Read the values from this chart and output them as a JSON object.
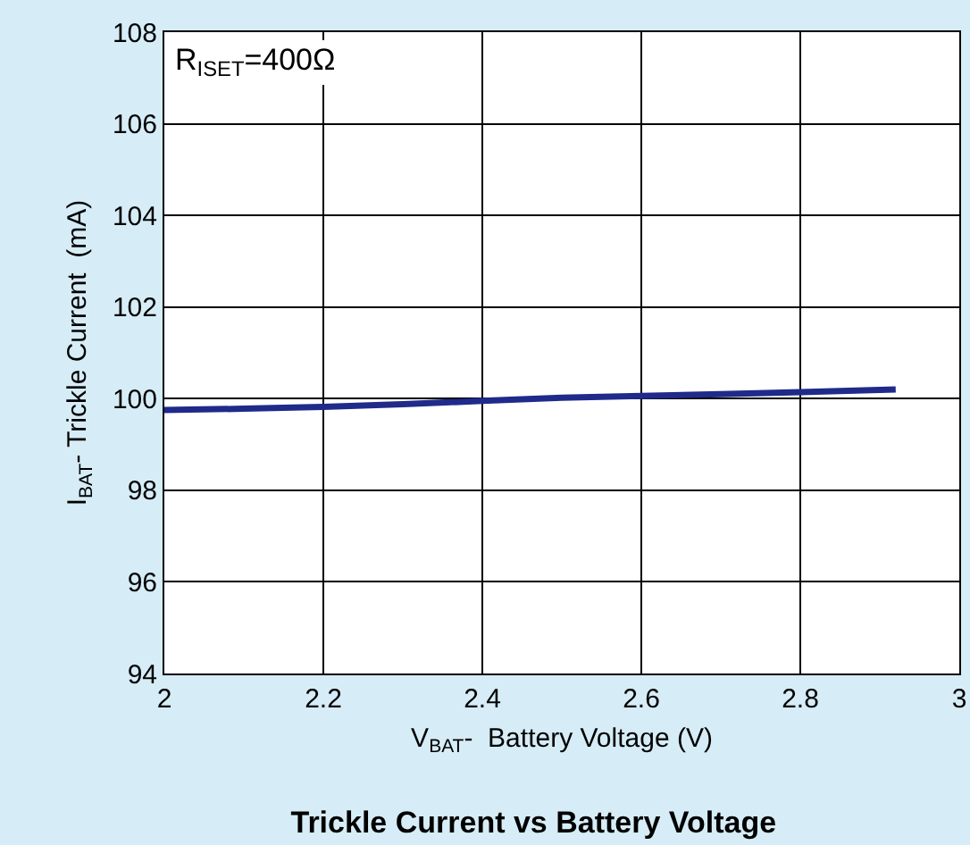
{
  "chart_data": {
    "type": "line",
    "title": "Trickle Current vs Battery Voltage",
    "xlabel": "V$_{BAT}$-  Battery Voltage (V)",
    "ylabel": "I$_{BAT}$- Trickle Current  (mA)",
    "annotations": [
      "R$_{ISET}$=400Ω"
    ],
    "x": [
      2,
      2.1,
      2.2,
      2.3,
      2.4,
      2.5,
      2.6,
      2.7,
      2.8,
      2.92
    ],
    "series": [
      {
        "color": "#1f2a8a",
        "values": [
          99.75,
          99.78,
          99.82,
          99.88,
          99.95,
          100.02,
          100.06,
          100.1,
          100.14,
          100.2
        ]
      }
    ],
    "xlim": [
      2,
      3
    ],
    "xticks": [
      2,
      2.2,
      2.4,
      2.6,
      2.8,
      3
    ],
    "ylim": [
      94,
      108
    ],
    "yticks": [
      94,
      96,
      98,
      100,
      102,
      104,
      106,
      108
    ],
    "grid": true,
    "marker": "none",
    "line_style": "solid"
  }
}
